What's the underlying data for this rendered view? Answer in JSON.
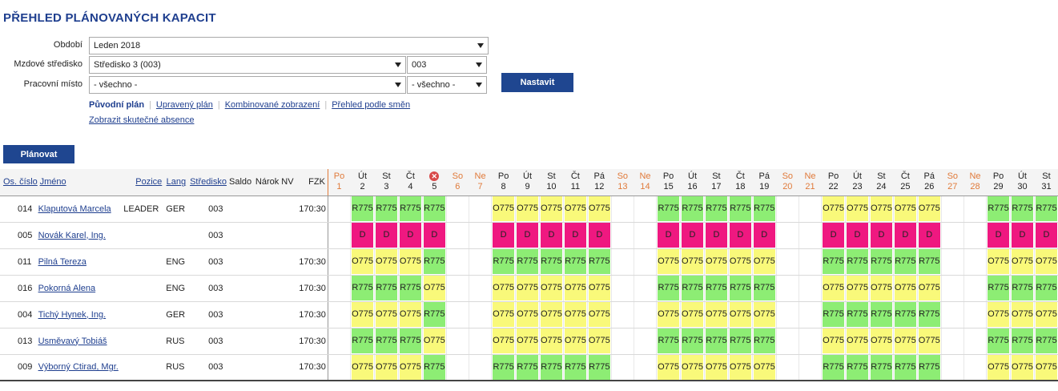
{
  "title": "PŘEHLED PLÁNOVANÝCH KAPACIT",
  "form": {
    "obdobi_label": "Období",
    "obdobi_value": "Leden 2018",
    "stredisko_label": "Mzdové středisko",
    "stredisko_value": "Středisko 3 (003)",
    "stredisko_code": "003",
    "misto_label": "Pracovní místo",
    "misto_value": "- všechno -",
    "misto_sub_value": "- všechno -",
    "set_button": "Nastavit"
  },
  "views": {
    "puvodni": "Původní plán",
    "upraveny": "Upravený plán",
    "kombinovane": "Kombinované zobrazení",
    "smeny": "Přehled podle směn",
    "absence": "Zobrazit skutečné absence"
  },
  "plan_button": "Plánovat",
  "columns": {
    "os": "Os. číslo",
    "jmeno": "Jméno",
    "pozice": "Pozice",
    "lang": "Lang",
    "stredisko": "Středisko",
    "saldo": "Saldo",
    "narok": "Nárok NV",
    "fzk": "FZK"
  },
  "days": [
    {
      "d": "Po",
      "n": "1",
      "w": true
    },
    {
      "d": "Út",
      "n": "2",
      "w": false
    },
    {
      "d": "St",
      "n": "3",
      "w": false
    },
    {
      "d": "Čt",
      "n": "4",
      "w": false
    },
    {
      "d": "",
      "n": "5",
      "w": false,
      "x": true
    },
    {
      "d": "So",
      "n": "6",
      "w": true
    },
    {
      "d": "Ne",
      "n": "7",
      "w": true
    },
    {
      "d": "Po",
      "n": "8",
      "w": false
    },
    {
      "d": "Út",
      "n": "9",
      "w": false
    },
    {
      "d": "St",
      "n": "10",
      "w": false
    },
    {
      "d": "Čt",
      "n": "11",
      "w": false
    },
    {
      "d": "Pá",
      "n": "12",
      "w": false
    },
    {
      "d": "So",
      "n": "13",
      "w": true
    },
    {
      "d": "Ne",
      "n": "14",
      "w": true
    },
    {
      "d": "Po",
      "n": "15",
      "w": false
    },
    {
      "d": "Út",
      "n": "16",
      "w": false
    },
    {
      "d": "St",
      "n": "17",
      "w": false
    },
    {
      "d": "Čt",
      "n": "18",
      "w": false
    },
    {
      "d": "Pá",
      "n": "19",
      "w": false
    },
    {
      "d": "So",
      "n": "20",
      "w": true
    },
    {
      "d": "Ne",
      "n": "21",
      "w": true
    },
    {
      "d": "Po",
      "n": "22",
      "w": false
    },
    {
      "d": "Út",
      "n": "23",
      "w": false
    },
    {
      "d": "St",
      "n": "24",
      "w": false
    },
    {
      "d": "Čt",
      "n": "25",
      "w": false
    },
    {
      "d": "Pá",
      "n": "26",
      "w": false
    },
    {
      "d": "So",
      "n": "27",
      "w": true
    },
    {
      "d": "Ne",
      "n": "28",
      "w": true
    },
    {
      "d": "Po",
      "n": "29",
      "w": false
    },
    {
      "d": "Út",
      "n": "30",
      "w": false
    },
    {
      "d": "St",
      "n": "31",
      "w": false
    }
  ],
  "employees": [
    {
      "os": "014",
      "name": "Klaputová Marcela",
      "pozice": "LEADER",
      "lang": "GER",
      "str": "003",
      "saldo": "",
      "narok": "",
      "fzk": "170:30",
      "cells": [
        "",
        "R775",
        "R775",
        "R775",
        "R775",
        "",
        "",
        "O775",
        "O775",
        "O775",
        "O775",
        "O775",
        "",
        "",
        "R775",
        "R775",
        "R775",
        "R775",
        "R775",
        "",
        "",
        "O775",
        "O775",
        "O775",
        "O775",
        "O775",
        "",
        "",
        "R775",
        "R775",
        "R775"
      ]
    },
    {
      "os": "005",
      "name": "Novák Karel, Ing.",
      "pozice": "",
      "lang": "",
      "str": "003",
      "saldo": "",
      "narok": "",
      "fzk": "",
      "cells": [
        "",
        "D",
        "D",
        "D",
        "D",
        "",
        "",
        "D",
        "D",
        "D",
        "D",
        "D",
        "",
        "",
        "D",
        "D",
        "D",
        "D",
        "D",
        "",
        "",
        "D",
        "D",
        "D",
        "D",
        "D",
        "",
        "",
        "D",
        "D",
        "D"
      ]
    },
    {
      "os": "011",
      "name": "Pilná Tereza",
      "pozice": "",
      "lang": "ENG",
      "str": "003",
      "saldo": "",
      "narok": "",
      "fzk": "170:30",
      "cells": [
        "",
        "O775",
        "O775",
        "O775",
        "R775",
        "",
        "",
        "R775",
        "R775",
        "R775",
        "R775",
        "R775",
        "",
        "",
        "O775",
        "O775",
        "O775",
        "O775",
        "O775",
        "",
        "",
        "R775",
        "R775",
        "R775",
        "R775",
        "R775",
        "",
        "",
        "O775",
        "O775",
        "O775"
      ]
    },
    {
      "os": "016",
      "name": "Pokorná Alena",
      "pozice": "",
      "lang": "ENG",
      "str": "003",
      "saldo": "",
      "narok": "",
      "fzk": "170:30",
      "cells": [
        "",
        "R775",
        "R775",
        "R775",
        "O775",
        "",
        "",
        "O775",
        "O775",
        "O775",
        "O775",
        "O775",
        "",
        "",
        "R775",
        "R775",
        "R775",
        "R775",
        "R775",
        "",
        "",
        "O775",
        "O775",
        "O775",
        "O775",
        "O775",
        "",
        "",
        "R775",
        "R775",
        "R775"
      ]
    },
    {
      "os": "004",
      "name": "Tichý Hynek, Ing.",
      "pozice": "",
      "lang": "GER",
      "str": "003",
      "saldo": "",
      "narok": "",
      "fzk": "170:30",
      "cells": [
        "",
        "O775",
        "O775",
        "O775",
        "R775",
        "",
        "",
        "O775",
        "O775",
        "O775",
        "O775",
        "O775",
        "",
        "",
        "O775",
        "O775",
        "O775",
        "O775",
        "O775",
        "",
        "",
        "R775",
        "R775",
        "R775",
        "R775",
        "R775",
        "",
        "",
        "O775",
        "O775",
        "O775"
      ]
    },
    {
      "os": "013",
      "name": "Usměvavý Tobiáš",
      "pozice": "",
      "lang": "RUS",
      "str": "003",
      "saldo": "",
      "narok": "",
      "fzk": "170:30",
      "cells": [
        "",
        "R775",
        "R775",
        "R775",
        "O775",
        "",
        "",
        "O775",
        "O775",
        "O775",
        "O775",
        "O775",
        "",
        "",
        "R775",
        "R775",
        "R775",
        "R775",
        "R775",
        "",
        "",
        "O775",
        "O775",
        "O775",
        "O775",
        "O775",
        "",
        "",
        "R775",
        "R775",
        "R775"
      ]
    },
    {
      "os": "009",
      "name": "Výborný Ctirad, Mgr.",
      "pozice": "",
      "lang": "RUS",
      "str": "003",
      "saldo": "",
      "narok": "",
      "fzk": "170:30",
      "cells": [
        "",
        "O775",
        "O775",
        "O775",
        "R775",
        "",
        "",
        "R775",
        "R775",
        "R775",
        "R775",
        "R775",
        "",
        "",
        "O775",
        "O775",
        "O775",
        "O775",
        "O775",
        "",
        "",
        "R775",
        "R775",
        "R775",
        "R775",
        "R775",
        "",
        "",
        "O775",
        "O775",
        "O775"
      ]
    }
  ],
  "colors": {
    "R": "#8ded74",
    "O": "#f9f97a",
    "D": "#ef1880",
    "accent": "#1f4690",
    "weekend": "#e07a3a"
  }
}
